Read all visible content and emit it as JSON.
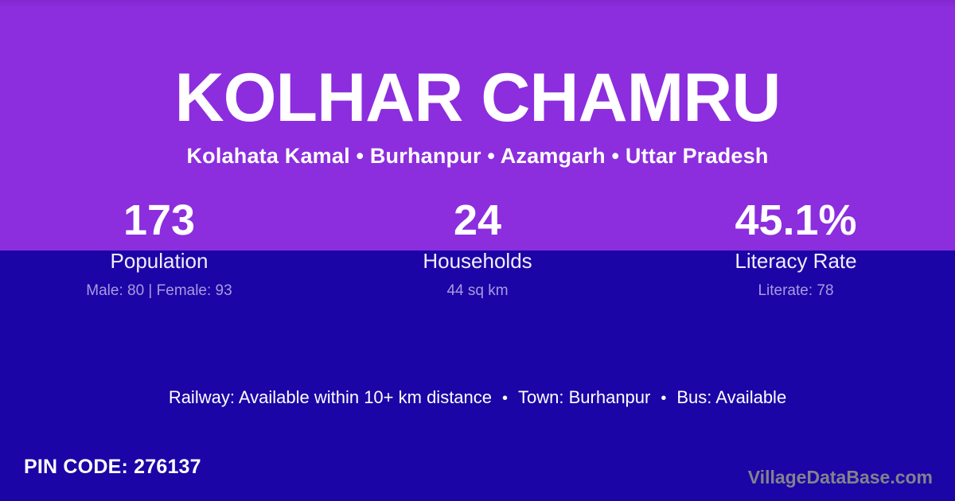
{
  "colors": {
    "purple": "#8C2DDE",
    "navy": "#1B05A6",
    "text-main": "#FFFFFF",
    "text-soft": "#F1EDFB",
    "text-muted": "#A89BDF",
    "watermark": "#82828C"
  },
  "header": {
    "title": "KOLHAR CHAMRU",
    "subtitle": "Kolahata Kamal • Burhanpur • Azamgarh • Uttar Pradesh"
  },
  "stats": [
    {
      "value": "173",
      "label": "Population",
      "detail": "Male: 80 | Female: 93"
    },
    {
      "value": "24",
      "label": "Households",
      "detail": "44 sq km"
    },
    {
      "value": "45.1%",
      "label": "Literacy Rate",
      "detail": "Literate: 78"
    }
  ],
  "info": {
    "separator": "•",
    "items": [
      "Railway: Available within 10+ km distance",
      "Town: Burhanpur",
      "Bus: Available"
    ]
  },
  "footer": {
    "pin_label": "PIN CODE:",
    "pin_value": "276137",
    "watermark": "VillageDataBase.com"
  }
}
